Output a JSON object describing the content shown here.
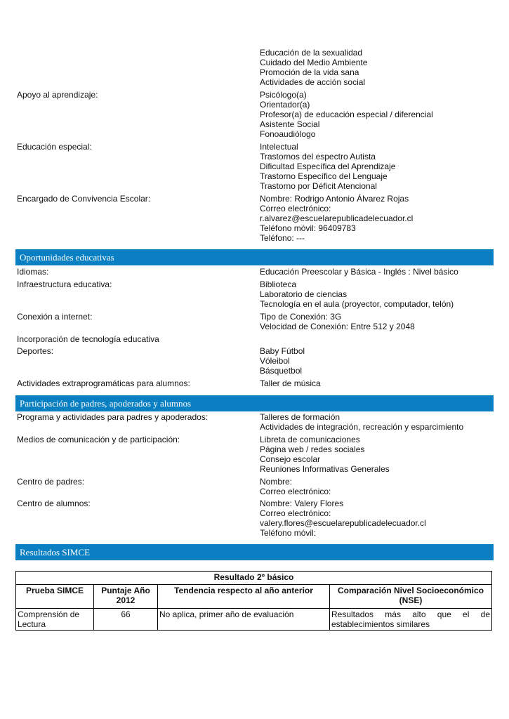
{
  "rows1": [
    {
      "label": "",
      "values": [
        "Educación de la sexualidad",
        "Cuidado del Medio Ambiente",
        "Promoción de la vida sana",
        "Actividades de acción social"
      ]
    },
    {
      "label": "Apoyo al aprendizaje:",
      "values": [
        "Psicólogo(a)",
        "Orientador(a)",
        "Profesor(a) de educación especial / diferencial",
        "Asistente Social",
        "Fonoaudiólogo"
      ]
    },
    {
      "label": "Educación especial:",
      "values": [
        "Intelectual",
        "Trastornos del espectro Autista",
        "Dificultad Específica del Aprendizaje",
        "Trastorno Específico del Lenguaje",
        "Trastorno por Déficit Atencional"
      ]
    },
    {
      "label": "Encargado de Convivencia Escolar:",
      "values": [
        "Nombre: Rodrigo Antonio Álvarez Rojas",
        "Correo electrónico:",
        "r.alvarez@escuelarepublicadelecuador.cl",
        "Teléfono móvil: 96409783",
        "Teléfono: ---"
      ]
    }
  ],
  "section2": {
    "title": "Oportunidades educativas",
    "rows": [
      {
        "label": "Idiomas:",
        "values": [
          "Educación Preescolar y Básica - Inglés : Nivel básico"
        ]
      },
      {
        "label": "Infraestructura educativa:",
        "values": [
          "Biblioteca",
          "Laboratorio de ciencias",
          "Tecnología en el aula (proyector, computador, telón)"
        ]
      },
      {
        "label": "Conexión a internet:",
        "values": [
          "Tipo de Conexión: 3G",
          "Velocidad de Conexión: Entre 512 y 2048"
        ]
      },
      {
        "label": "Incorporación de tecnología educativa",
        "values": []
      },
      {
        "label": "Deportes:",
        "values": [
          "Baby Fútbol",
          "Vóleibol",
          "Básquetbol"
        ]
      },
      {
        "label": "Actividades extraprogramáticas para alumnos:",
        "values": [
          "Taller de música"
        ]
      }
    ]
  },
  "section3": {
    "title": "Participación de padres, apoderados y alumnos",
    "rows": [
      {
        "label": "Programa y actividades para padres y apoderados:",
        "values": [
          "Talleres de formación",
          "Actividades de integración, recreación y esparcimiento"
        ]
      },
      {
        "label": "Medios de comunicación y de participación:",
        "values": [
          "Libreta de comunicaciones",
          "Página web / redes sociales",
          "Consejo escolar",
          "Reuniones Informativas Generales"
        ]
      },
      {
        "label": "Centro de padres:",
        "values": [
          "Nombre:",
          "Correo electrónico:"
        ]
      },
      {
        "label": "Centro de alumnos:",
        "values": [
          "Nombre: Valery Flores",
          "Correo electrónico:",
          "valery.flores@escuelarepublicadelecuador.cl",
          "Teléfono móvil:"
        ]
      }
    ]
  },
  "section4": {
    "title": "Resultados SIMCE",
    "table": {
      "caption": "Resultado 2º básico",
      "headers": [
        "Prueba SIMCE",
        "Puntaje Año 2012",
        "Tendencia respecto al año anterior",
        "Comparación Nivel Socioeconómico (NSE)"
      ],
      "rows": [
        [
          "Comprensión de Lectura",
          "66",
          "No aplica, primer año de evaluación",
          "Resultados más alto que el de establecimientos similares"
        ]
      ]
    }
  },
  "colors": {
    "section_bar": "#0a7fc2"
  }
}
